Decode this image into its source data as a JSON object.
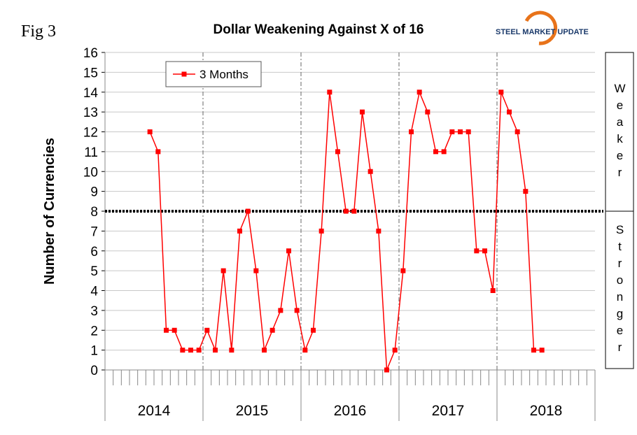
{
  "chart_data": {
    "type": "line",
    "title": "Dollar Weakening Against X of 16",
    "figure_label": "Fig 3",
    "logo": "STEEL MARKET UPDATE",
    "y_label": "Number of Currencies",
    "ylim": [
      0,
      16
    ],
    "yticks": [
      0,
      1,
      2,
      3,
      4,
      5,
      6,
      7,
      8,
      9,
      10,
      11,
      12,
      13,
      14,
      15,
      16
    ],
    "year_labels": [
      "2014",
      "2015",
      "2016",
      "2017",
      "2018"
    ],
    "categories": [
      null,
      null,
      null,
      null,
      null,
      null,
      null,
      null,
      null,
      null,
      null,
      null,
      null,
      null,
      null,
      null,
      null,
      null,
      null,
      null,
      null,
      null,
      null,
      null,
      null,
      null,
      null,
      null,
      null,
      null,
      null,
      null,
      null,
      null,
      null,
      null,
      null,
      null,
      null,
      null,
      null,
      null,
      null,
      null,
      null,
      null,
      null,
      null,
      null,
      null,
      null,
      null,
      null,
      null,
      null,
      null,
      null,
      null,
      null,
      null
    ],
    "series": [
      {
        "name": "3 Months",
        "color": "#ff0000",
        "values": [
          null,
          null,
          null,
          null,
          null,
          12,
          11,
          2,
          2,
          1,
          1,
          1,
          2,
          1,
          5,
          1,
          7,
          8,
          5,
          1,
          2,
          3,
          6,
          3,
          1,
          2,
          7,
          14,
          11,
          8,
          8,
          13,
          10,
          7,
          0,
          1,
          5,
          12,
          14,
          13,
          11,
          11,
          12,
          12,
          12,
          6,
          6,
          4,
          14,
          13,
          12,
          9,
          1,
          1,
          null,
          null,
          null,
          null,
          null,
          null
        ]
      }
    ],
    "reference_line": 8,
    "side_labels": [
      "Weaker",
      "Stronger"
    ],
    "grid": true,
    "legend": "upper left"
  }
}
